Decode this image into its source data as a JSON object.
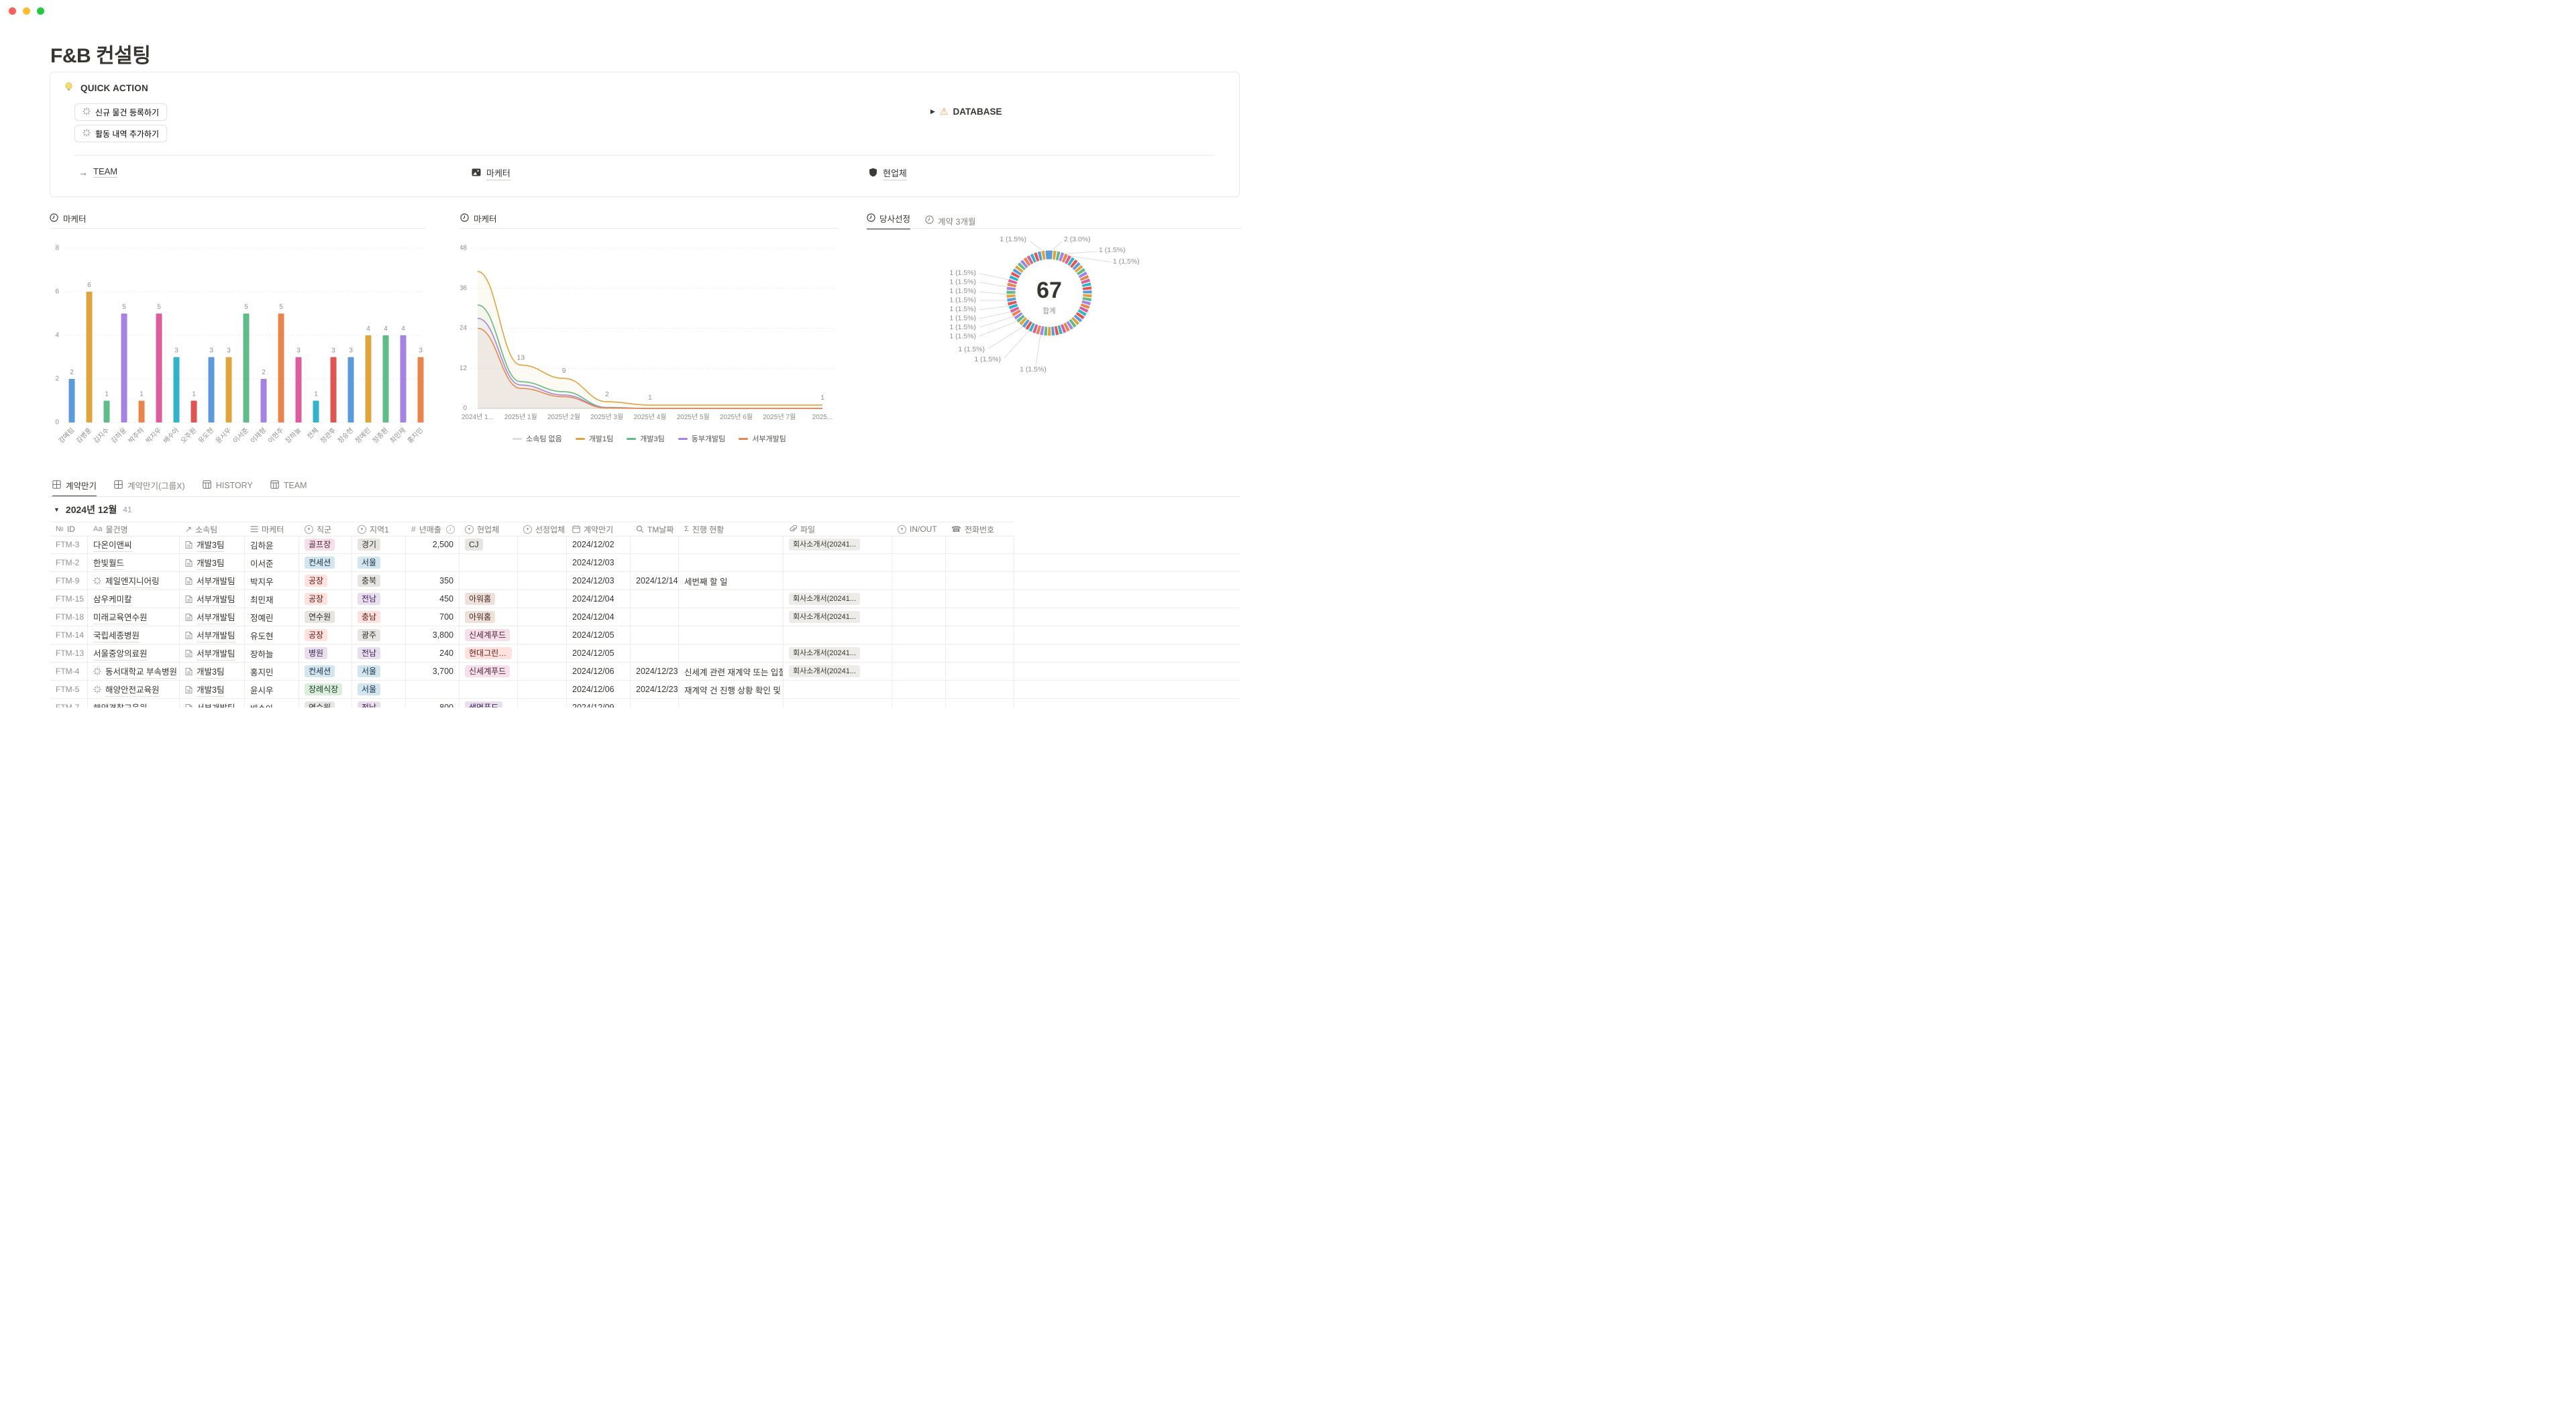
{
  "page": {
    "title": "F&B 컨설팅"
  },
  "window_controls": [
    "close",
    "minimize",
    "zoom"
  ],
  "quick_action": {
    "title": "QUICK ACTION",
    "buttons": [
      "신규 물건 등록하기",
      "활동 내역 추가하기"
    ],
    "database_label": "DATABASE",
    "links": [
      {
        "label": "TEAM",
        "icon": "arrow-right-icon"
      },
      {
        "label": "마케터",
        "icon": "image-icon"
      },
      {
        "label": "현업체",
        "icon": "shield-icon"
      }
    ]
  },
  "chart_data": [
    {
      "id": "marketer-bar",
      "type": "bar",
      "title": "마케터",
      "categories": [
        "강예림",
        "김병훈",
        "김지수",
        "김하윤",
        "박주하",
        "박지우",
        "배수아",
        "오주원",
        "유도현",
        "윤시우",
        "이서준",
        "이재형",
        "이현주",
        "장하늘",
        "전체",
        "정관후",
        "정승현",
        "정예린",
        "정종환",
        "최민재",
        "홍지민"
      ],
      "values": [
        2,
        6,
        1,
        5,
        1,
        5,
        3,
        1,
        3,
        3,
        5,
        2,
        5,
        3,
        1,
        3,
        3,
        4,
        4,
        4,
        3
      ],
      "ylim": [
        0,
        8
      ],
      "yticks": [
        0,
        2,
        4,
        6,
        8
      ],
      "palette": [
        "#5b9bd9",
        "#dfa43f",
        "#5fbb87",
        "#a583e2",
        "#e8854d",
        "#dd5c9e",
        "#33b3c9",
        "#e05452"
      ]
    },
    {
      "id": "marketer-line",
      "type": "line",
      "title": "마케터",
      "x": [
        "2024년 1...",
        "2025년 1월",
        "2025년 2월",
        "2025년 3월",
        "2025년 4월",
        "2025년 5월",
        "2025년 6월",
        "2025년 7월",
        "2025..."
      ],
      "ylim": [
        0,
        48
      ],
      "yticks": [
        0,
        12,
        24,
        36,
        48
      ],
      "legend_position": "bottom",
      "series": [
        {
          "name": "소속팀 없음",
          "color": "#dedddb",
          "values": [
            0,
            0,
            0,
            0,
            0,
            0,
            0,
            0,
            0
          ],
          "labels": {}
        },
        {
          "name": "개발3팀",
          "color": "#5fbb87",
          "values": [
            31,
            8,
            5,
            0.3,
            0,
            0,
            0,
            0,
            0
          ],
          "labels": {}
        },
        {
          "name": "동부개발팀",
          "color": "#a583e2",
          "values": [
            27,
            7,
            4,
            0.2,
            0,
            0,
            0,
            0,
            0
          ],
          "labels": {}
        },
        {
          "name": "서부개발팀",
          "color": "#e8854d",
          "values": [
            24,
            6,
            3.5,
            0.1,
            0,
            0,
            0,
            0,
            0
          ],
          "labels": {}
        },
        {
          "name": "개발1팀",
          "color": "#dfa43f",
          "values": [
            41,
            13,
            9,
            2,
            1,
            1,
            1,
            1,
            1
          ],
          "labels": {
            "1": "13",
            "2": "9",
            "3": "2",
            "4": "1",
            "8": "1"
          }
        }
      ]
    },
    {
      "id": "selection-donut",
      "type": "donut",
      "tabs": [
        "당사선정",
        "계약 3개월"
      ],
      "active_tab": 0,
      "total": "67",
      "total_label": "합계",
      "big_slice_value": 2,
      "small_slice_value": 1,
      "small_slice_count": 65,
      "palette": [
        "#5b9bd9",
        "#dfa43f",
        "#5fbb87",
        "#a583e2",
        "#e8854d",
        "#dd5c9e",
        "#33b3c9",
        "#e05452"
      ],
      "callouts": [
        "1 (1.5%)",
        "2 (3.0%)",
        "1 (1.5%)",
        "1 (1.5%)",
        "1 (1.5%)",
        "1 (1.5%)",
        "1 (1.5%)",
        "1 (1.5%)",
        "1 (1.5%)",
        "1 (1.5%)",
        "1 (1.5%)",
        "1 (1.5%)",
        "1 (1.5%)",
        "1 (1.5%)",
        "1 (1.5%)"
      ]
    }
  ],
  "table": {
    "tabs": [
      {
        "label": "계약만기",
        "icon": "table-view-icon",
        "active": true
      },
      {
        "label": "계약만기(그룹X)",
        "icon": "table-view-icon",
        "active": false
      },
      {
        "label": "HISTORY",
        "icon": "board-view-icon",
        "active": false
      },
      {
        "label": "TEAM",
        "icon": "board-view-icon",
        "active": false
      }
    ],
    "group": {
      "label": "2024년 12월",
      "count": "41"
    },
    "columns": [
      {
        "key": "id",
        "label": "ID",
        "icon": "numero"
      },
      {
        "key": "name",
        "label": "물건명",
        "icon": "Aa"
      },
      {
        "key": "team",
        "label": "소속팀",
        "icon": "relation"
      },
      {
        "key": "marketer",
        "label": "마케터",
        "icon": "rollup"
      },
      {
        "key": "category",
        "label": "직군",
        "icon": "select"
      },
      {
        "key": "region",
        "label": "지역1",
        "icon": "select"
      },
      {
        "key": "revenue",
        "label": "년매출",
        "icon": "number",
        "info": true
      },
      {
        "key": "client",
        "label": "현업체",
        "icon": "select"
      },
      {
        "key": "selected",
        "label": "선정업체",
        "icon": "select"
      },
      {
        "key": "expiry",
        "label": "계약만기",
        "icon": "calendar"
      },
      {
        "key": "tm",
        "label": "TM날짜",
        "icon": "search"
      },
      {
        "key": "progress",
        "label": "진행 현황",
        "icon": "sigma"
      },
      {
        "key": "file",
        "label": "파일",
        "icon": "clip"
      },
      {
        "key": "inout",
        "label": "IN/OUT",
        "icon": "select"
      },
      {
        "key": "phone",
        "label": "전화번호",
        "icon": "phone"
      }
    ],
    "rows": [
      {
        "id": "FTM-3",
        "name_icon": false,
        "name": "다온이앤씨",
        "team": "개발3팀",
        "marketer": "김하윤",
        "category": {
          "label": "골프장",
          "color": "pink"
        },
        "region": {
          "label": "경기",
          "color": "gray"
        },
        "revenue": "2,500",
        "client": {
          "label": "CJ",
          "color": "gray"
        },
        "selected": "",
        "expiry": "2024/12/02",
        "tm": "",
        "progress": "",
        "file": "회사소개서(20241...",
        "inout": "",
        "phone": ""
      },
      {
        "id": "FTM-2",
        "name_icon": false,
        "name": "한빛월드",
        "team": "개발3팀",
        "marketer": "이서준",
        "category": {
          "label": "컨세션",
          "color": "blue"
        },
        "region": {
          "label": "서울",
          "color": "blue"
        },
        "revenue": "",
        "client": null,
        "selected": "",
        "expiry": "2024/12/03",
        "tm": "",
        "progress": "",
        "file": "",
        "inout": "",
        "phone": ""
      },
      {
        "id": "FTM-9",
        "name_icon": true,
        "name": "제일엔지니어링",
        "team": "서부개발팀",
        "marketer": "박지우",
        "category": {
          "label": "공장",
          "color": "red"
        },
        "region": {
          "label": "충북",
          "color": "gray"
        },
        "revenue": "350",
        "client": null,
        "selected": "",
        "expiry": "2024/12/03",
        "tm": "2024/12/14",
        "progress": "세번째 할 일",
        "file": "",
        "inout": "",
        "phone": ""
      },
      {
        "id": "FTM-15",
        "name_icon": false,
        "name": "삼우케미칼",
        "team": "서부개발팀",
        "marketer": "최민재",
        "category": {
          "label": "공장",
          "color": "red"
        },
        "region": {
          "label": "전남",
          "color": "purple"
        },
        "revenue": "450",
        "client": {
          "label": "아워홈",
          "color": "brown"
        },
        "selected": "",
        "expiry": "2024/12/04",
        "tm": "",
        "progress": "",
        "file": "회사소개서(20241...",
        "inout": "",
        "phone": ""
      },
      {
        "id": "FTM-18",
        "name_icon": false,
        "name": "미래교육연수원",
        "team": "서부개발팀",
        "marketer": "정예린",
        "category": {
          "label": "연수원",
          "color": "gray"
        },
        "region": {
          "label": "충남",
          "color": "red"
        },
        "revenue": "700",
        "client": {
          "label": "아워홈",
          "color": "brown"
        },
        "selected": "",
        "expiry": "2024/12/04",
        "tm": "",
        "progress": "",
        "file": "회사소개서(20241...",
        "inout": "",
        "phone": ""
      },
      {
        "id": "FTM-14",
        "name_icon": false,
        "name": "국립세종병원",
        "team": "서부개발팀",
        "marketer": "유도현",
        "category": {
          "label": "공장",
          "color": "red"
        },
        "region": {
          "label": "광주",
          "color": "gray"
        },
        "revenue": "3,800",
        "client": {
          "label": "신세계푸드",
          "color": "pink"
        },
        "selected": "",
        "expiry": "2024/12/05",
        "tm": "",
        "progress": "",
        "file": "",
        "inout": "",
        "phone": ""
      },
      {
        "id": "FTM-13",
        "name_icon": false,
        "name": "서울중앙의료원",
        "team": "서부개발팀",
        "marketer": "장하늘",
        "category": {
          "label": "병원",
          "color": "purple"
        },
        "region": {
          "label": "전남",
          "color": "purple"
        },
        "revenue": "240",
        "client": {
          "label": "현대그린푸드",
          "color": "red"
        },
        "selected": "",
        "expiry": "2024/12/05",
        "tm": "",
        "progress": "",
        "file": "회사소개서(20241...",
        "inout": "",
        "phone": ""
      },
      {
        "id": "FTM-4",
        "name_icon": true,
        "name": "동서대학교 부속병원",
        "team": "개발3팀",
        "marketer": "홍지민",
        "category": {
          "label": "컨세션",
          "color": "blue"
        },
        "region": {
          "label": "서울",
          "color": "blue"
        },
        "revenue": "3,700",
        "client": {
          "label": "신세계푸드",
          "color": "pink"
        },
        "selected": "",
        "expiry": "2024/12/06",
        "tm": "2024/12/23",
        "progress": "신세계 관련 재계약 또는 입찰 여부",
        "file": "회사소개서(20241...",
        "inout": "",
        "phone": ""
      },
      {
        "id": "FTM-5",
        "name_icon": true,
        "name": "해양안전교육원",
        "team": "개발3팀",
        "marketer": "윤시우",
        "category": {
          "label": "장례식장",
          "color": "green"
        },
        "region": {
          "label": "서울",
          "color": "blue"
        },
        "revenue": "",
        "client": null,
        "selected": "",
        "expiry": "2024/12/06",
        "tm": "2024/12/23",
        "progress": "재계약 건 진행 상황 확인 및 담당자",
        "file": "",
        "inout": "",
        "phone": ""
      },
      {
        "id": "FTM-7",
        "name_icon": false,
        "name": "해양경찰교육원",
        "team": "서부개발팀",
        "marketer": "배수아",
        "category": {
          "label": "연수원",
          "color": "gray"
        },
        "region": {
          "label": "전남",
          "color": "purple"
        },
        "revenue": "800",
        "client": {
          "label": "생명푸드",
          "color": "purple"
        },
        "selected": "",
        "expiry": "2024/12/09",
        "tm": "",
        "progress": "",
        "file": "",
        "inout": "",
        "phone": ""
      }
    ]
  },
  "colors": {
    "traffic": [
      "#ff5f57",
      "#febc2e",
      "#28c840"
    ],
    "text": "#37352f",
    "muted": "#8f8e8b",
    "grid": "#e4e3e1",
    "border": "#e9e9e7"
  }
}
